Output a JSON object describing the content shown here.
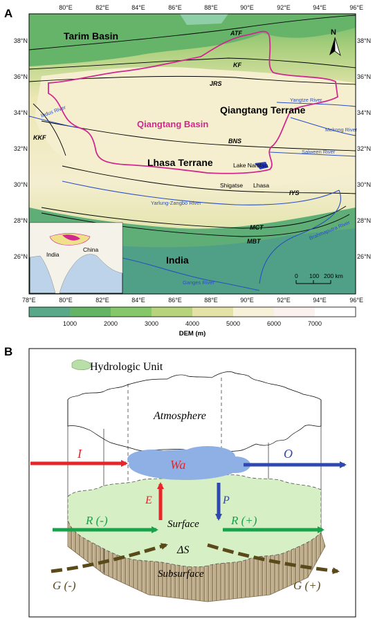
{
  "panel_a": {
    "letter": "A",
    "lon_ticks": [
      "78°E",
      "80°E",
      "82°E",
      "84°E",
      "86°E",
      "88°E",
      "90°E",
      "92°E",
      "94°E",
      "96°E"
    ],
    "lat_ticks": [
      "38°N",
      "36°N",
      "34°N",
      "32°N",
      "30°N",
      "28°N",
      "26°N"
    ],
    "regions": {
      "tarim": "Tarim Basin",
      "qiangtang_terrane": "Qiangtang Terrane",
      "qiangtang_basin": "Qiangtang Basin",
      "lhasa_terrane": "Lhasa Terrane",
      "india": "India"
    },
    "faults": [
      "ATF",
      "KF",
      "JRS",
      "BNS",
      "KKF",
      "IYS",
      "MCT",
      "MBT"
    ],
    "rivers": {
      "yangtze": "Yangtze River",
      "mekong": "Mekong River",
      "salween": "Salween River",
      "indus": "Indus River",
      "yarlung": "Yarlung-Zangbo River",
      "brahmaputra": "Brahmaputra River",
      "ganges": "Ganges River"
    },
    "places": {
      "namtso": "Lake Namtso",
      "shigatse": "Shigatse",
      "lhasa": "Lhasa"
    },
    "north": "N",
    "inset": {
      "india": "India",
      "china": "China"
    },
    "scale": {
      "labels": [
        "0",
        "100",
        "200 km"
      ]
    },
    "dem": {
      "title": "DEM (m)",
      "labels": [
        "1000",
        "2000",
        "3000",
        "4000",
        "5000",
        "6000",
        "7000"
      ],
      "colors": [
        "#5aa88a",
        "#63b565",
        "#86c76a",
        "#b7d47c",
        "#e4e2a6",
        "#f6f1d8",
        "#fbf2ef",
        "#ffffff"
      ]
    }
  },
  "panel_b": {
    "letter": "B",
    "legend": "Hydrologic Unit",
    "atmosphere": "Atmosphere",
    "surface": "Surface",
    "subsurface": "Subsurface",
    "wa": "Wa",
    "inflow": "I",
    "outflow": "O",
    "evap": "E",
    "precip": "P",
    "runoff_in": "R (-)",
    "runoff_out": "R (+)",
    "storage": "ΔS",
    "ground_in": "G (-)",
    "ground_out": "G (+)"
  }
}
